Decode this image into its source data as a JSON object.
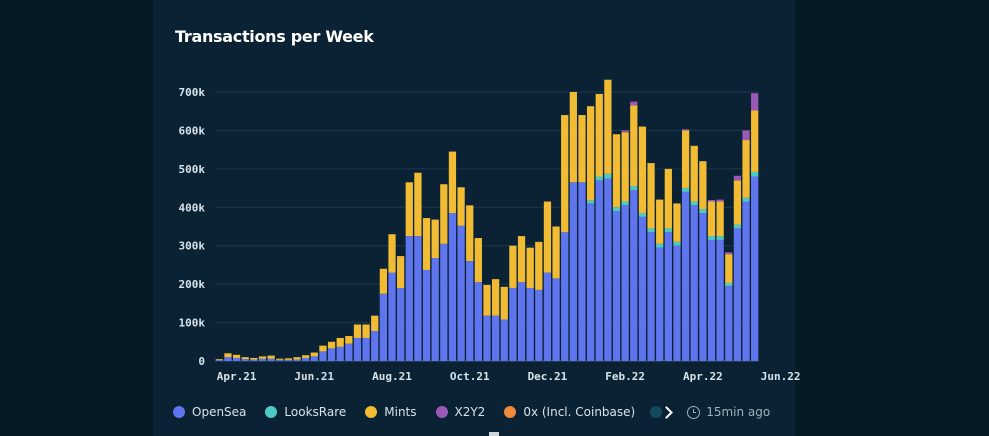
{
  "chart_data": {
    "type": "bar",
    "stacked": true,
    "title": "Transactions per Week",
    "xlabel": "",
    "ylabel": "",
    "ylim": [
      0,
      700000
    ],
    "yticks": [
      0,
      100000,
      200000,
      300000,
      400000,
      500000,
      600000,
      700000
    ],
    "ytick_labels": [
      "0",
      "100k",
      "200k",
      "300k",
      "400k",
      "500k",
      "600k",
      "700k"
    ],
    "xtick_labels": [
      {
        "label": "Apr.21",
        "index": 2
      },
      {
        "label": "Jun.21",
        "index": 11
      },
      {
        "label": "Aug.21",
        "index": 20
      },
      {
        "label": "Oct.21",
        "index": 29
      },
      {
        "label": "Dec.21",
        "index": 38
      },
      {
        "label": "Feb.22",
        "index": 47
      },
      {
        "label": "Apr.22",
        "index": 56
      },
      {
        "label": "Jun.22",
        "index": 65
      }
    ],
    "grid": true,
    "legend_position": "bottom",
    "colors": {
      "OpenSea": "#5f75ee",
      "LooksRare": "#4ec9c4",
      "Mints": "#f1bc34",
      "X2Y2": "#9b59b6",
      "0x (Incl. Coinbase)": "#f08a3c"
    },
    "series": [
      {
        "name": "OpenSea",
        "values": [
          3000,
          10000,
          8000,
          5000,
          4000,
          6000,
          6000,
          3000,
          3000,
          4000,
          8000,
          12000,
          25000,
          33000,
          37000,
          45000,
          60000,
          60000,
          78000,
          175000,
          230000,
          190000,
          325000,
          325000,
          237000,
          268000,
          305000,
          385000,
          352000,
          260000,
          205000,
          118000,
          118000,
          108000,
          190000,
          205000,
          190000,
          185000,
          230000,
          215000,
          335000,
          465000,
          465000,
          410000,
          470000,
          475000,
          390000,
          405000,
          445000,
          375000,
          335000,
          295000,
          335000,
          300000,
          440000,
          405000,
          385000,
          315000,
          315000,
          195000,
          345000,
          415000,
          480000
        ]
      },
      {
        "name": "LooksRare",
        "values": [
          0,
          0,
          0,
          0,
          0,
          0,
          0,
          0,
          0,
          0,
          0,
          0,
          0,
          0,
          0,
          0,
          0,
          0,
          0,
          0,
          0,
          0,
          0,
          0,
          0,
          0,
          0,
          0,
          0,
          0,
          0,
          0,
          0,
          0,
          0,
          0,
          0,
          0,
          0,
          0,
          0,
          0,
          0,
          8000,
          10000,
          12000,
          10000,
          10000,
          10000,
          10000,
          10000,
          10000,
          10000,
          10000,
          10000,
          10000,
          10000,
          10000,
          10000,
          8000,
          10000,
          10000,
          12000
        ]
      },
      {
        "name": "Mints",
        "values": [
          2000,
          10000,
          8000,
          5000,
          4000,
          6000,
          8000,
          3000,
          4000,
          6000,
          7000,
          10000,
          15000,
          17000,
          23000,
          20000,
          35000,
          35000,
          40000,
          65000,
          100000,
          83000,
          140000,
          165000,
          135000,
          100000,
          155000,
          160000,
          100000,
          145000,
          115000,
          80000,
          95000,
          85000,
          110000,
          120000,
          105000,
          125000,
          185000,
          135000,
          305000,
          235000,
          175000,
          245000,
          215000,
          245000,
          190000,
          180000,
          210000,
          225000,
          170000,
          115000,
          155000,
          100000,
          150000,
          145000,
          125000,
          90000,
          90000,
          75000,
          115000,
          150000,
          160000
        ]
      },
      {
        "name": "X2Y2",
        "values": [
          0,
          0,
          0,
          0,
          0,
          0,
          0,
          0,
          0,
          0,
          0,
          0,
          0,
          0,
          0,
          0,
          0,
          0,
          0,
          0,
          0,
          0,
          0,
          0,
          0,
          0,
          0,
          0,
          0,
          0,
          0,
          0,
          0,
          0,
          0,
          0,
          0,
          0,
          0,
          0,
          0,
          0,
          0,
          0,
          0,
          0,
          0,
          5000,
          10000,
          0,
          0,
          0,
          0,
          0,
          3000,
          0,
          0,
          4000,
          5000,
          5000,
          12000,
          25000,
          45000
        ]
      },
      {
        "name": "0x (Incl. Coinbase)",
        "values": [
          0,
          0,
          0,
          0,
          0,
          0,
          0,
          0,
          0,
          0,
          0,
          0,
          0,
          0,
          0,
          0,
          0,
          0,
          0,
          0,
          0,
          0,
          0,
          0,
          0,
          0,
          0,
          0,
          0,
          0,
          0,
          0,
          0,
          0,
          0,
          0,
          0,
          0,
          0,
          0,
          0,
          0,
          0,
          0,
          0,
          0,
          0,
          0,
          0,
          0,
          0,
          0,
          0,
          0,
          0,
          0,
          0,
          0,
          0,
          0,
          0,
          0,
          0
        ]
      }
    ]
  },
  "legend": {
    "items": [
      {
        "label": "OpenSea",
        "color": "#5f75ee"
      },
      {
        "label": "LooksRare",
        "color": "#4ec9c4"
      },
      {
        "label": "Mints",
        "color": "#f1bc34"
      },
      {
        "label": "X2Y2",
        "color": "#9b59b6"
      },
      {
        "label": "0x (Incl. Coinbase)",
        "color": "#f08a3c"
      }
    ],
    "updated": "15min ago"
  }
}
